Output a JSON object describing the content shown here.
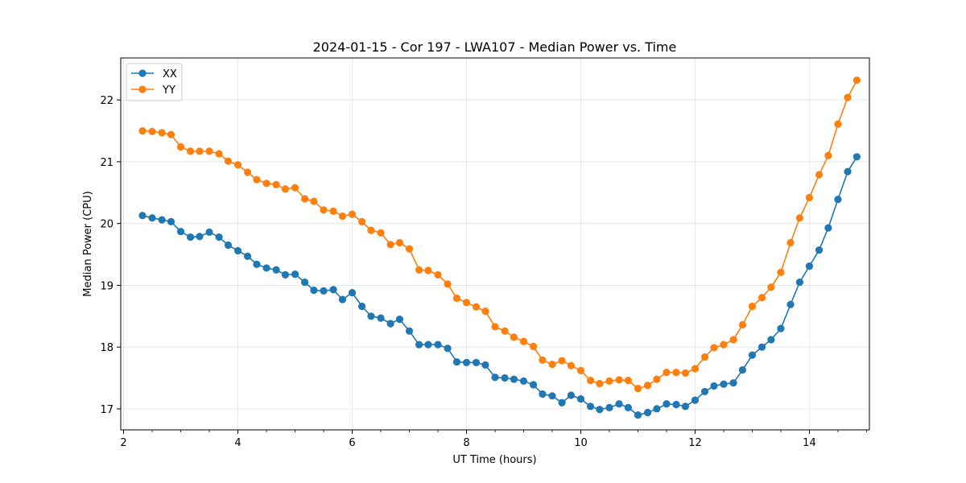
{
  "chart_data": {
    "type": "line",
    "title": "2024-01-15 - Cor 197 - LWA107 - Median Power vs. Time",
    "xlabel": "UT Time (hours)",
    "ylabel": "Median Power (CPU)",
    "xlim": [
      1.95,
      15.05
    ],
    "ylim": [
      16.66,
      22.68
    ],
    "xticks": [
      2,
      4,
      6,
      8,
      10,
      12,
      14
    ],
    "yticks": [
      17,
      18,
      19,
      20,
      21,
      22
    ],
    "grid": true,
    "legend_position": "upper-left",
    "x": [
      2.33,
      2.5,
      2.67,
      2.83,
      3.0,
      3.17,
      3.33,
      3.5,
      3.67,
      3.83,
      4.0,
      4.17,
      4.33,
      4.5,
      4.67,
      4.83,
      5.0,
      5.17,
      5.33,
      5.5,
      5.67,
      5.83,
      6.0,
      6.17,
      6.33,
      6.5,
      6.67,
      6.83,
      7.0,
      7.17,
      7.33,
      7.5,
      7.67,
      7.83,
      8.0,
      8.17,
      8.33,
      8.5,
      8.67,
      8.83,
      9.0,
      9.17,
      9.33,
      9.5,
      9.67,
      9.83,
      10.0,
      10.17,
      10.33,
      10.5,
      10.67,
      10.83,
      11.0,
      11.17,
      11.33,
      11.5,
      11.67,
      11.83,
      12.0,
      12.17,
      12.33,
      12.5,
      12.67,
      12.83,
      13.0,
      13.17,
      13.33,
      13.5,
      13.67,
      13.83,
      14.0,
      14.17,
      14.33,
      14.5,
      14.67,
      14.83
    ],
    "series": [
      {
        "name": "XX",
        "color": "#1f77b4",
        "values": [
          20.13,
          20.09,
          20.06,
          20.03,
          19.87,
          19.78,
          19.79,
          19.86,
          19.78,
          19.65,
          19.56,
          19.47,
          19.34,
          19.28,
          19.25,
          19.17,
          19.18,
          19.05,
          18.92,
          18.91,
          18.93,
          18.77,
          18.88,
          18.66,
          18.5,
          18.47,
          18.38,
          18.45,
          18.26,
          18.04,
          18.04,
          18.04,
          17.98,
          17.76,
          17.75,
          17.75,
          17.71,
          17.51,
          17.5,
          17.48,
          17.45,
          17.39,
          17.24,
          17.21,
          17.1,
          17.22,
          17.16,
          17.04,
          16.99,
          17.02,
          17.08,
          17.02,
          16.9,
          16.94,
          17.0,
          17.08,
          17.07,
          17.04,
          17.14,
          17.28,
          17.37,
          17.4,
          17.42,
          17.63,
          17.87,
          18.0,
          18.12,
          18.3,
          18.69,
          19.05,
          19.31,
          19.57,
          19.93,
          20.39,
          20.84,
          21.08
        ]
      },
      {
        "name": "YY",
        "color": "#ff7f0e",
        "values": [
          21.5,
          21.49,
          21.47,
          21.44,
          21.24,
          21.17,
          21.17,
          21.17,
          21.13,
          21.01,
          20.95,
          20.83,
          20.71,
          20.65,
          20.63,
          20.56,
          20.58,
          20.4,
          20.36,
          20.22,
          20.2,
          20.12,
          20.15,
          20.03,
          19.89,
          19.85,
          19.66,
          19.69,
          19.59,
          19.25,
          19.24,
          19.17,
          19.02,
          18.79,
          18.72,
          18.65,
          18.58,
          18.33,
          18.26,
          18.16,
          18.09,
          18.01,
          17.79,
          17.72,
          17.78,
          17.7,
          17.62,
          17.46,
          17.41,
          17.45,
          17.47,
          17.46,
          17.33,
          17.38,
          17.48,
          17.59,
          17.59,
          17.58,
          17.65,
          17.84,
          17.99,
          18.04,
          18.12,
          18.36,
          18.66,
          18.8,
          18.97,
          19.21,
          19.69,
          20.09,
          20.42,
          20.79,
          21.1,
          21.61,
          22.04,
          22.32
        ]
      }
    ]
  }
}
